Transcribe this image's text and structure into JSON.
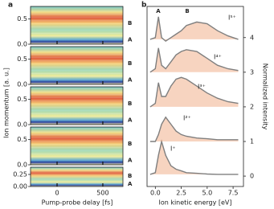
{
  "chart_data": [
    {
      "type": "heatmap",
      "panel_label": "a",
      "xlabel": "Pump-probe delay [fs]",
      "ylabel": "Ion momentum [a. u.]",
      "xlim": [
        -290,
        720
      ],
      "xticks": [
        0,
        500
      ],
      "panels": [
        {
          "ylim": [
            0,
            0.75
          ],
          "yticks": [
            {
              "value": 0,
              "label": "0.0"
            },
            0.5
          ],
          "labels": [
            "B",
            "A"
          ]
        },
        {
          "ylim": [
            0,
            0.75
          ],
          "yticks": [
            {
              "value": 0,
              "label": "0.0"
            },
            0.5
          ],
          "labels": [
            "B",
            "A"
          ]
        },
        {
          "ylim": [
            0,
            0.75
          ],
          "yticks": [
            {
              "value": 0,
              "label": "0.0"
            },
            0.5
          ],
          "labels": [
            "B",
            "A"
          ]
        },
        {
          "ylim": [
            0,
            0.75
          ],
          "yticks": [
            {
              "value": 0,
              "label": "0.0"
            },
            0.5
          ],
          "labels": [
            "B",
            "A"
          ]
        },
        {
          "ylim": [
            0,
            0.4
          ],
          "yticks": [
            {
              "value": 0,
              "label": "0.00"
            },
            0.25
          ],
          "labels": [
            "B",
            "A"
          ]
        }
      ]
    },
    {
      "type": "line",
      "panel_label": "b",
      "xlabel": "Ion kinetic energy [eV]",
      "ylabel": "Normalized intensity",
      "xlim": [
        -0.8,
        8.5
      ],
      "xticks": [
        {
          "value": 0,
          "label": "0.0"
        },
        2.5,
        {
          "value": 5,
          "label": "5.0"
        },
        7.5
      ],
      "ylim": [
        -0.3,
        4.9
      ],
      "yticks": [
        0,
        1,
        2,
        3,
        4
      ],
      "peak_labels": [
        "A",
        "B"
      ],
      "x": [
        -0.5,
        0,
        0.3,
        0.6,
        1,
        1.5,
        2,
        2.5,
        3,
        4,
        5,
        6,
        7,
        8
      ],
      "series": [
        {
          "name": "I⁺",
          "color": "#7f7f7f",
          "values": [
            0.05,
            0.1,
            0.6,
            1.0,
            0.6,
            0.3,
            0.2,
            0.15,
            0.1,
            0.08,
            0.06,
            0.05,
            0.05,
            0.05
          ]
        },
        {
          "name": "I²⁺",
          "color": "#7f7f7f",
          "values": [
            1.0,
            1.0,
            1.2,
            1.5,
            1.7,
            1.5,
            1.3,
            1.2,
            1.15,
            1.1,
            1.08,
            1.05,
            1.05,
            1.05
          ]
        },
        {
          "name": "I³⁺",
          "color": "#7f7f7f",
          "values": [
            2.0,
            2.1,
            2.7,
            2.3,
            2.3,
            2.6,
            2.8,
            2.85,
            2.8,
            2.6,
            2.4,
            2.25,
            2.15,
            2.1
          ]
        },
        {
          "name": "I⁴⁺",
          "color": "#7f7f7f",
          "values": [
            3.0,
            3.1,
            3.7,
            3.2,
            3.1,
            3.3,
            3.5,
            3.6,
            3.65,
            3.6,
            3.4,
            3.2,
            3.1,
            3.05
          ]
        },
        {
          "name": "I⁵⁺",
          "color": "#7f7f7f",
          "values": [
            3.95,
            4.0,
            4.6,
            4.0,
            3.9,
            4.0,
            4.1,
            4.2,
            4.35,
            4.45,
            4.4,
            4.2,
            4.05,
            3.95
          ]
        }
      ]
    }
  ]
}
